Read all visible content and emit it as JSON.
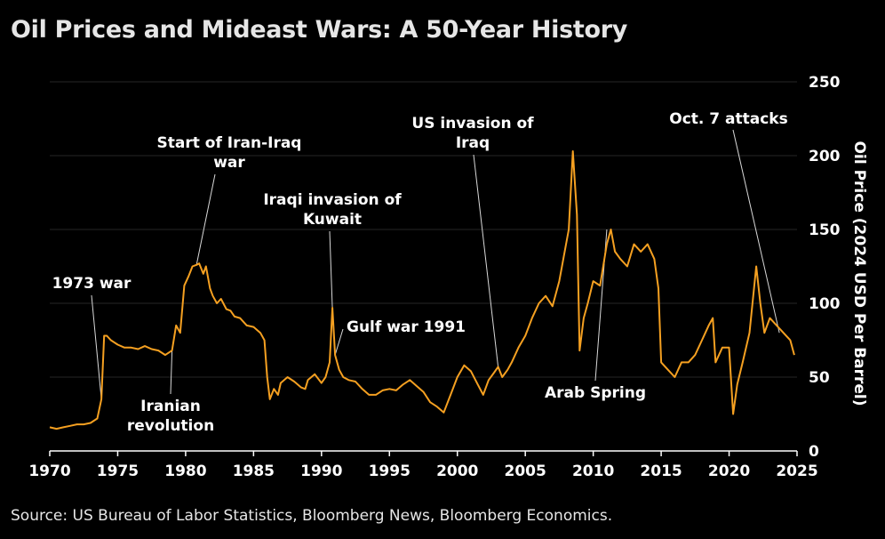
{
  "colors": {
    "background": "#000000",
    "line": "#f5a021",
    "grid": "#262626",
    "text": "#ffffff",
    "leader": "#d9d9d9"
  },
  "chart_data": {
    "type": "line",
    "title": "Oil Prices and Mideast Wars: A 50-Year History",
    "source": "Source: US Bureau of Labor Statistics, Bloomberg News, Bloomberg Economics.",
    "xlabel": "",
    "ylabel": "Oil Price (2024 USD Per Barrel)",
    "xlim": [
      1970,
      2025
    ],
    "ylim": [
      0,
      250
    ],
    "xticks": [
      1970,
      1975,
      1980,
      1985,
      1990,
      1995,
      2000,
      2005,
      2010,
      2015,
      2020,
      2025
    ],
    "yticks": [
      0,
      50,
      100,
      150,
      200,
      250
    ],
    "y_axis_side": "right",
    "grid": "horizontal",
    "series": [
      {
        "name": "Oil Price (2024 USD Per Barrel)",
        "x": [
          1970.0,
          1970.5,
          1971.0,
          1971.5,
          1972.0,
          1972.5,
          1973.0,
          1973.5,
          1973.8,
          1974.0,
          1974.2,
          1974.5,
          1975.0,
          1975.5,
          1976.0,
          1976.5,
          1977.0,
          1977.5,
          1978.0,
          1978.5,
          1979.0,
          1979.3,
          1979.6,
          1979.9,
          1980.2,
          1980.5,
          1980.8,
          1981.0,
          1981.3,
          1981.5,
          1981.8,
          1982.0,
          1982.3,
          1982.6,
          1983.0,
          1983.3,
          1983.6,
          1984.0,
          1984.5,
          1985.0,
          1985.5,
          1985.8,
          1986.0,
          1986.2,
          1986.5,
          1986.8,
          1987.0,
          1987.5,
          1988.0,
          1988.5,
          1988.8,
          1989.0,
          1989.5,
          1990.0,
          1990.3,
          1990.6,
          1990.8,
          1991.0,
          1991.3,
          1991.6,
          1992.0,
          1992.5,
          1993.0,
          1993.5,
          1994.0,
          1994.5,
          1995.0,
          1995.5,
          1996.0,
          1996.5,
          1997.0,
          1997.5,
          1998.0,
          1998.5,
          1999.0,
          1999.5,
          2000.0,
          2000.5,
          2001.0,
          2001.5,
          2001.9,
          2002.3,
          2002.7,
          2003.0,
          2003.3,
          2003.7,
          2004.0,
          2004.5,
          2005.0,
          2005.5,
          2006.0,
          2006.5,
          2007.0,
          2007.5,
          2007.9,
          2008.2,
          2008.5,
          2008.8,
          2009.0,
          2009.3,
          2009.6,
          2010.0,
          2010.5,
          2011.0,
          2011.3,
          2011.6,
          2012.0,
          2012.5,
          2013.0,
          2013.5,
          2014.0,
          2014.5,
          2014.8,
          2015.0,
          2015.5,
          2016.0,
          2016.5,
          2017.0,
          2017.5,
          2018.0,
          2018.5,
          2018.8,
          2019.0,
          2019.5,
          2020.0,
          2020.3,
          2020.6,
          2021.0,
          2021.5,
          2022.0,
          2022.3,
          2022.6,
          2023.0,
          2023.5,
          2024.0,
          2024.5,
          2024.8
        ],
        "values": [
          16,
          15,
          16,
          17,
          18,
          18,
          19,
          22,
          35,
          78,
          78,
          75,
          72,
          70,
          70,
          69,
          71,
          69,
          68,
          65,
          68,
          85,
          80,
          112,
          118,
          125,
          126,
          127,
          120,
          125,
          110,
          105,
          100,
          103,
          96,
          95,
          91,
          90,
          85,
          84,
          80,
          75,
          50,
          35,
          42,
          38,
          46,
          50,
          47,
          43,
          42,
          48,
          52,
          46,
          50,
          60,
          97,
          65,
          55,
          50,
          48,
          47,
          42,
          38,
          38,
          41,
          42,
          41,
          45,
          48,
          44,
          40,
          33,
          30,
          26,
          38,
          50,
          58,
          54,
          45,
          38,
          48,
          53,
          57,
          50,
          55,
          60,
          70,
          78,
          90,
          100,
          105,
          98,
          115,
          135,
          150,
          203,
          160,
          68,
          90,
          100,
          115,
          112,
          140,
          150,
          135,
          130,
          125,
          140,
          135,
          140,
          130,
          110,
          60,
          55,
          50,
          60,
          60,
          65,
          75,
          85,
          90,
          60,
          70,
          70,
          25,
          45,
          60,
          80,
          125,
          100,
          80,
          90,
          85,
          80,
          75,
          65
        ]
      }
    ],
    "annotations": [
      {
        "lines": [
          "1973 war"
        ],
        "x": 1973.8,
        "y": 35
      },
      {
        "lines": [
          "Iranian",
          "revolution"
        ],
        "x": 1979.0,
        "y": 68
      },
      {
        "lines": [
          "Start of Iran-Iraq",
          "war"
        ],
        "x": 1980.8,
        "y": 126
      },
      {
        "lines": [
          "Iraqi invasion of",
          "Kuwait"
        ],
        "x": 1990.8,
        "y": 97
      },
      {
        "lines": [
          "Gulf war 1991"
        ],
        "x": 1991.0,
        "y": 65
      },
      {
        "lines": [
          "US invasion of",
          "Iraq"
        ],
        "x": 2003.0,
        "y": 57
      },
      {
        "lines": [
          "Arab Spring"
        ],
        "x": 2011.0,
        "y": 150
      },
      {
        "lines": [
          "Oct. 7 attacks"
        ],
        "x": 2023.7,
        "y": 80
      }
    ]
  }
}
